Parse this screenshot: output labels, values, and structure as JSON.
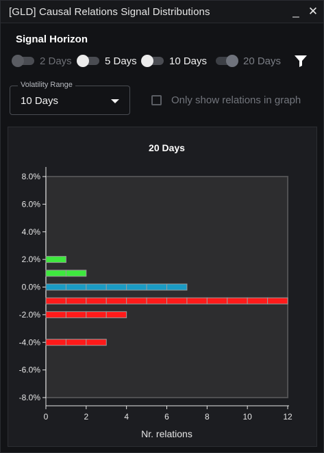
{
  "window": {
    "title": "[GLD] Causal Relations Signal Distributions",
    "minimize_label": "_",
    "close_label": "✕"
  },
  "signal_horizon": {
    "title": "Signal Horizon",
    "toggles": [
      {
        "label": "2 Days",
        "state": "off"
      },
      {
        "label": "5 Days",
        "state": "on"
      },
      {
        "label": "10 Days",
        "state": "on"
      },
      {
        "label": "20 Days",
        "state": "dim"
      }
    ],
    "filter_icon": "filter-icon"
  },
  "volatility": {
    "legend": "Volatility Range",
    "value": "10 Days"
  },
  "only_show": {
    "label": "Only show relations in graph",
    "checked": false
  },
  "chart_data": {
    "type": "bar",
    "orientation": "horizontal",
    "title": "20 Days",
    "xlabel": "Nr. relations",
    "ylabel": "",
    "xlim": [
      0,
      12
    ],
    "ylim": [
      -8.0,
      8.0
    ],
    "x_ticks": [
      "0",
      "2",
      "4",
      "6",
      "8",
      "10",
      "12"
    ],
    "y_ticks": [
      "8.0%",
      "6.0%",
      "4.0%",
      "2.0%",
      "0.0%",
      "-2.0%",
      "-4.0%",
      "-6.0%",
      "-8.0%"
    ],
    "grid": false,
    "bars": [
      {
        "y": 2.0,
        "count": 1,
        "color": "#3ee83e"
      },
      {
        "y": 1.0,
        "count": 2,
        "color": "#3ee83e"
      },
      {
        "y": 0.0,
        "count": 7,
        "color": "#1a9bc4"
      },
      {
        "y": -1.0,
        "count": 12,
        "color": "#ff1a1a"
      },
      {
        "y": -2.0,
        "count": 4,
        "color": "#ff1a1a"
      },
      {
        "y": -4.0,
        "count": 3,
        "color": "#ff1a1a"
      }
    ]
  }
}
